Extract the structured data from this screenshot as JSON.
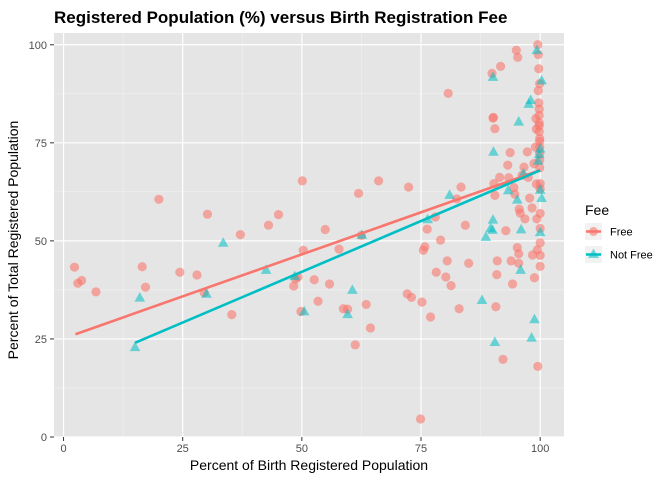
{
  "chart_data": {
    "type": "scatter",
    "title": "Registered Population (%) versus Birth Registration Fee",
    "xlabel": "Percent of Birth Registered Population",
    "ylabel": "Percent of Total Registered Population",
    "xlim": [
      -2,
      105
    ],
    "ylim": [
      0,
      103
    ],
    "xticks": [
      0,
      25,
      50,
      75,
      100
    ],
    "yticks": [
      0,
      25,
      50,
      75,
      100
    ],
    "xtick_labels": [
      "0",
      "25",
      "50",
      "75",
      "100"
    ],
    "ytick_labels": [
      "0",
      "25",
      "50",
      "75",
      "100"
    ],
    "grid": true,
    "background": "#e5e5e5",
    "legend": {
      "title": "Fee",
      "position": "right"
    },
    "series": [
      {
        "name": "Free",
        "color": "#f8766d",
        "marker": "circle",
        "trend": [
          [
            2.5,
            26.2
          ],
          [
            100,
            68.0
          ]
        ],
        "points": [
          [
            2.3,
            43.3
          ],
          [
            3.0,
            39.2
          ],
          [
            3.8,
            39.9
          ],
          [
            6.8,
            37.0
          ],
          [
            16.5,
            43.4
          ],
          [
            17.2,
            38.2
          ],
          [
            20.0,
            60.6
          ],
          [
            24.4,
            42.0
          ],
          [
            28.0,
            41.3
          ],
          [
            30.2,
            56.8
          ],
          [
            29.5,
            36.8
          ],
          [
            35.3,
            31.2
          ],
          [
            37.1,
            51.6
          ],
          [
            43.0,
            54.0
          ],
          [
            45.1,
            56.7
          ],
          [
            48.3,
            38.5
          ],
          [
            48.7,
            40.3
          ],
          [
            49.2,
            40.8
          ],
          [
            49.8,
            32.0
          ],
          [
            50.1,
            65.3
          ],
          [
            50.3,
            47.6
          ],
          [
            52.6,
            40.1
          ],
          [
            53.4,
            34.6
          ],
          [
            54.9,
            52.9
          ],
          [
            55.8,
            39.0
          ],
          [
            57.8,
            47.9
          ],
          [
            58.7,
            32.7
          ],
          [
            59.6,
            32.6
          ],
          [
            61.2,
            23.5
          ],
          [
            61.9,
            62.1
          ],
          [
            62.5,
            51.4
          ],
          [
            63.5,
            33.8
          ],
          [
            64.4,
            27.8
          ],
          [
            66.1,
            65.3
          ],
          [
            72.1,
            36.5
          ],
          [
            72.4,
            63.7
          ],
          [
            73.0,
            35.6
          ],
          [
            74.9,
            4.6
          ],
          [
            75.2,
            34.4
          ],
          [
            75.5,
            47.6
          ],
          [
            75.8,
            48.5
          ],
          [
            76.3,
            53.0
          ],
          [
            77.0,
            30.6
          ],
          [
            78.0,
            56.1
          ],
          [
            78.2,
            42.0
          ],
          [
            79.1,
            50.2
          ],
          [
            80.2,
            40.8
          ],
          [
            80.5,
            44.9
          ],
          [
            80.7,
            87.6
          ],
          [
            81.3,
            38.6
          ],
          [
            82.5,
            60.7
          ],
          [
            83.0,
            32.7
          ],
          [
            83.4,
            63.7
          ],
          [
            84.3,
            54.0
          ],
          [
            85.0,
            44.3
          ],
          [
            89.9,
            92.7
          ],
          [
            90.1,
            81.3
          ],
          [
            90.2,
            81.5
          ],
          [
            90.3,
            64.6
          ],
          [
            90.5,
            78.6
          ],
          [
            90.5,
            61.6
          ],
          [
            90.7,
            33.2
          ],
          [
            90.9,
            41.4
          ],
          [
            91.0,
            44.9
          ],
          [
            91.7,
            94.5
          ],
          [
            91.5,
            66.2
          ],
          [
            92.2,
            19.8
          ],
          [
            92.8,
            52.6
          ],
          [
            93.2,
            69.3
          ],
          [
            93.4,
            66.1
          ],
          [
            93.7,
            72.5
          ],
          [
            93.9,
            44.9
          ],
          [
            94.2,
            39.0
          ],
          [
            94.5,
            63.6
          ],
          [
            94.7,
            61.9
          ],
          [
            95.0,
            98.6
          ],
          [
            95.2,
            48.3
          ],
          [
            95.3,
            96.8
          ],
          [
            95.5,
            46.7
          ],
          [
            95.5,
            44.3
          ],
          [
            95.6,
            58.1
          ],
          [
            95.8,
            57.1
          ],
          [
            96.2,
            66.7
          ],
          [
            96.6,
            68.8
          ],
          [
            96.8,
            55.6
          ],
          [
            97.3,
            72.7
          ],
          [
            97.5,
            66.2
          ],
          [
            97.8,
            60.9
          ],
          [
            98.3,
            58.4
          ],
          [
            98.4,
            46.4
          ],
          [
            98.7,
            69.7
          ],
          [
            98.8,
            40.6
          ],
          [
            99.0,
            73.9
          ],
          [
            99.1,
            81.2
          ],
          [
            99.2,
            78.5
          ],
          [
            99.2,
            64.5
          ],
          [
            99.3,
            55.6
          ],
          [
            99.4,
            47.7
          ],
          [
            99.5,
            18.0
          ],
          [
            99.5,
            100.0
          ],
          [
            99.6,
            97.5
          ],
          [
            99.7,
            93.9
          ],
          [
            99.7,
            85.2
          ],
          [
            99.8,
            83.6
          ],
          [
            99.8,
            82.0
          ],
          [
            99.8,
            80.1
          ],
          [
            99.8,
            79.4
          ],
          [
            99.8,
            77.9
          ],
          [
            99.9,
            76.1
          ],
          [
            99.9,
            75.4
          ],
          [
            99.9,
            73.9
          ],
          [
            99.9,
            72.2
          ],
          [
            99.9,
            70.6
          ],
          [
            99.9,
            68.6
          ],
          [
            100.0,
            64.6
          ],
          [
            100.0,
            63.3
          ],
          [
            100.0,
            57.0
          ],
          [
            100.0,
            53.2
          ],
          [
            100.0,
            49.5
          ],
          [
            100.0,
            46.3
          ],
          [
            100.0,
            43.5
          ],
          [
            99.9,
            90.1
          ],
          [
            99.6,
            88.3
          ]
        ]
      },
      {
        "name": "Not Free",
        "color": "#00bfc4",
        "marker": "triangle",
        "trend": [
          [
            15,
            24.0
          ],
          [
            100,
            68.0
          ]
        ],
        "points": [
          [
            15.0,
            22.9
          ],
          [
            16.0,
            35.5
          ],
          [
            30.0,
            36.5
          ],
          [
            33.5,
            49.5
          ],
          [
            42.5,
            42.6
          ],
          [
            48.5,
            41.0
          ],
          [
            50.5,
            32.0
          ],
          [
            59.6,
            31.3
          ],
          [
            60.6,
            37.5
          ],
          [
            62.6,
            51.5
          ],
          [
            76.4,
            55.5
          ],
          [
            81.0,
            61.7
          ],
          [
            87.8,
            34.9
          ],
          [
            88.6,
            51.0
          ],
          [
            89.6,
            53.2
          ],
          [
            90.0,
            52.8
          ],
          [
            90.2,
            72.7
          ],
          [
            90.1,
            55.4
          ],
          [
            90.5,
            24.2
          ],
          [
            90.1,
            91.8
          ],
          [
            93.3,
            62.9
          ],
          [
            95.2,
            60.5
          ],
          [
            95.5,
            80.4
          ],
          [
            95.9,
            42.6
          ],
          [
            96.0,
            52.9
          ],
          [
            96.5,
            67.2
          ],
          [
            97.6,
            84.9
          ],
          [
            98.0,
            85.9
          ],
          [
            98.2,
            25.3
          ],
          [
            98.8,
            30.0
          ],
          [
            99.3,
            98.6
          ],
          [
            99.6,
            70.4
          ],
          [
            99.8,
            72.1
          ],
          [
            100.0,
            73.5
          ],
          [
            100.0,
            63.0
          ],
          [
            100.0,
            52.2
          ],
          [
            100.3,
            90.9
          ],
          [
            100.3,
            60.9
          ]
        ]
      }
    ]
  }
}
